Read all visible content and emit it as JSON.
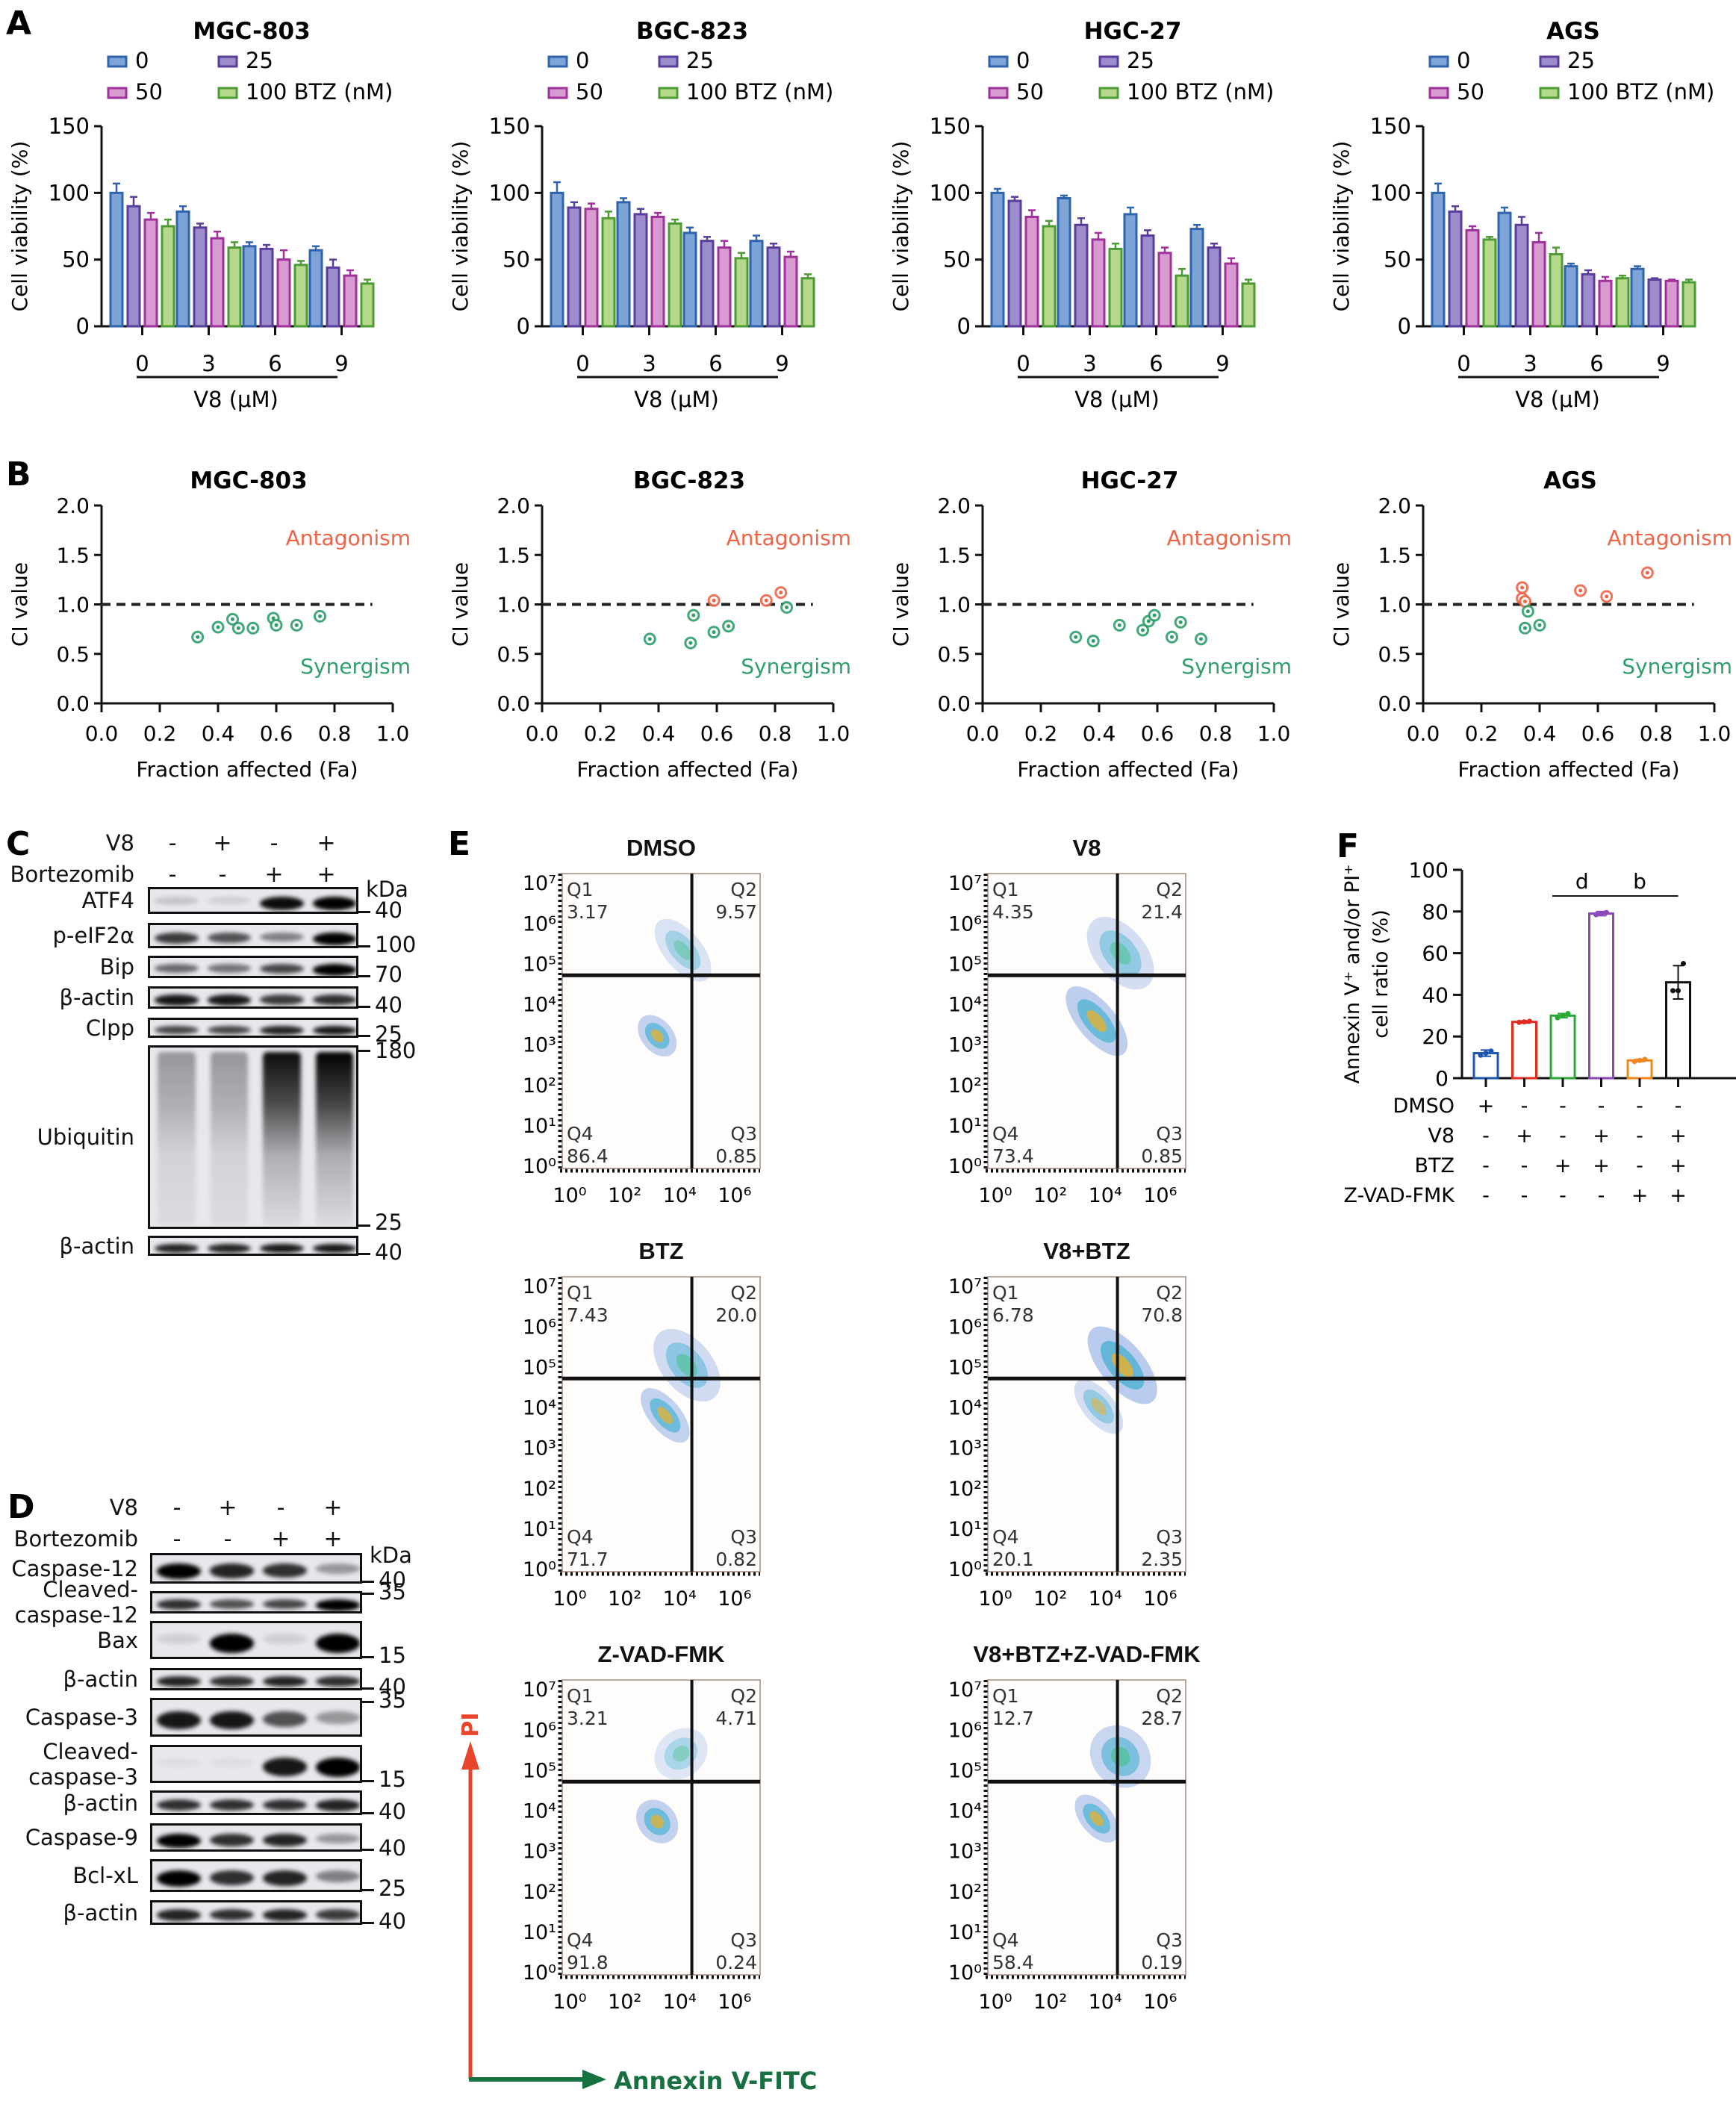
{
  "figure": {
    "panels": {
      "A": "A",
      "B": "B",
      "C": "C",
      "D": "D",
      "E": "E",
      "F": "F"
    }
  },
  "colors": {
    "btz0": "#2f63ad",
    "btz0_fill": "#7ea3d6",
    "btz25": "#5a3c9c",
    "btz25_fill": "#9d8ccb",
    "btz50": "#a0309a",
    "btz50_fill": "#d79bd1",
    "btz100": "#4e9a35",
    "btz100_fill": "#b5d98a",
    "antagonism": "#ee6448",
    "synergism": "#2e9e6b",
    "pi_arrow": "#e8452b",
    "annexin_arrow": "#16703f"
  },
  "chart_data": [
    {
      "id": "A-MGC-803",
      "type": "bar",
      "title": "MGC-803",
      "xlabel": "V8 (μM)",
      "ylabel": "Cell viability (%)",
      "categories": [
        "0",
        "3",
        "6",
        "9"
      ],
      "ylim": [
        0,
        150
      ],
      "yticks": [
        0,
        50,
        100,
        150
      ],
      "legend": [
        "0",
        "25",
        "50",
        "100 BTZ (nM)"
      ],
      "series": [
        {
          "name": "0",
          "values": [
            100,
            86,
            60,
            57
          ],
          "errors": [
            7,
            4,
            3,
            3
          ]
        },
        {
          "name": "25",
          "values": [
            90,
            74,
            58,
            44
          ],
          "errors": [
            7,
            3,
            3,
            6
          ]
        },
        {
          "name": "50",
          "values": [
            80,
            66,
            50,
            38
          ],
          "errors": [
            5,
            5,
            7,
            4
          ]
        },
        {
          "name": "100",
          "values": [
            75,
            59,
            46,
            32
          ],
          "errors": [
            5,
            4,
            3,
            3
          ]
        }
      ]
    },
    {
      "id": "A-BGC-823",
      "type": "bar",
      "title": "BGC-823",
      "xlabel": "V8 (μM)",
      "ylabel": "Cell viability (%)",
      "categories": [
        "0",
        "3",
        "6",
        "9"
      ],
      "ylim": [
        0,
        150
      ],
      "yticks": [
        0,
        50,
        100,
        150
      ],
      "legend": [
        "0",
        "25",
        "50",
        "100 BTZ (nM)"
      ],
      "series": [
        {
          "name": "0",
          "values": [
            100,
            93,
            70,
            64
          ],
          "errors": [
            8,
            3,
            4,
            4
          ]
        },
        {
          "name": "25",
          "values": [
            89,
            84,
            64,
            59
          ],
          "errors": [
            4,
            4,
            3,
            3
          ]
        },
        {
          "name": "50",
          "values": [
            88,
            82,
            59,
            52
          ],
          "errors": [
            4,
            3,
            5,
            4
          ]
        },
        {
          "name": "100",
          "values": [
            81,
            77,
            51,
            36
          ],
          "errors": [
            5,
            3,
            4,
            3
          ]
        }
      ]
    },
    {
      "id": "A-HGC-27",
      "type": "bar",
      "title": "HGC-27",
      "xlabel": "V8 (μM)",
      "ylabel": "Cell viability (%)",
      "categories": [
        "0",
        "3",
        "6",
        "9"
      ],
      "ylim": [
        0,
        150
      ],
      "yticks": [
        0,
        50,
        100,
        150
      ],
      "legend": [
        "0",
        "25",
        "50",
        "100 BTZ (nM)"
      ],
      "series": [
        {
          "name": "0",
          "values": [
            100,
            96,
            84,
            73
          ],
          "errors": [
            3,
            2,
            5,
            3
          ]
        },
        {
          "name": "25",
          "values": [
            94,
            76,
            68,
            59
          ],
          "errors": [
            3,
            5,
            4,
            3
          ]
        },
        {
          "name": "50",
          "values": [
            82,
            65,
            55,
            47
          ],
          "errors": [
            5,
            5,
            4,
            4
          ]
        },
        {
          "name": "100",
          "values": [
            75,
            58,
            38,
            32
          ],
          "errors": [
            4,
            4,
            5,
            3
          ]
        }
      ]
    },
    {
      "id": "A-AGS",
      "type": "bar",
      "title": "AGS",
      "xlabel": "V8 (μM)",
      "ylabel": "Cell viability (%)",
      "categories": [
        "0",
        "3",
        "6",
        "9"
      ],
      "ylim": [
        0,
        150
      ],
      "yticks": [
        0,
        50,
        100,
        150
      ],
      "legend": [
        "0",
        "25",
        "50",
        "100 BTZ (nM)"
      ],
      "series": [
        {
          "name": "0",
          "values": [
            100,
            85,
            45,
            43
          ],
          "errors": [
            7,
            4,
            2,
            2
          ]
        },
        {
          "name": "25",
          "values": [
            86,
            76,
            39,
            35
          ],
          "errors": [
            4,
            6,
            3,
            1
          ]
        },
        {
          "name": "50",
          "values": [
            72,
            63,
            34,
            34
          ],
          "errors": [
            3,
            7,
            3,
            1
          ]
        },
        {
          "name": "100",
          "values": [
            65,
            54,
            36,
            33
          ],
          "errors": [
            2,
            5,
            2,
            2
          ]
        }
      ]
    },
    {
      "id": "B-MGC-803",
      "type": "scatter",
      "title": "MGC-803",
      "xlabel": "Fraction affected (Fa)",
      "ylabel": "CI value",
      "xlim": [
        0,
        1
      ],
      "ylim": [
        0,
        2
      ],
      "xticks": [
        "0.0",
        "0.2",
        "0.4",
        "0.6",
        "0.8",
        "1.0"
      ],
      "yticks": [
        "0.0",
        "0.5",
        "1.0",
        "1.5",
        "2.0"
      ],
      "reference_line": 1.0,
      "annotations": [
        "Antagonism",
        "Synergism"
      ],
      "points": [
        {
          "x": 0.33,
          "y": 0.67,
          "class": "synergism"
        },
        {
          "x": 0.4,
          "y": 0.77,
          "class": "synergism"
        },
        {
          "x": 0.45,
          "y": 0.85,
          "class": "synergism"
        },
        {
          "x": 0.47,
          "y": 0.76,
          "class": "synergism"
        },
        {
          "x": 0.52,
          "y": 0.76,
          "class": "synergism"
        },
        {
          "x": 0.59,
          "y": 0.86,
          "class": "synergism"
        },
        {
          "x": 0.6,
          "y": 0.79,
          "class": "synergism"
        },
        {
          "x": 0.67,
          "y": 0.79,
          "class": "synergism"
        },
        {
          "x": 0.75,
          "y": 0.88,
          "class": "synergism"
        }
      ]
    },
    {
      "id": "B-BGC-823",
      "type": "scatter",
      "title": "BGC-823",
      "xlabel": "Fraction affected (Fa)",
      "ylabel": "CI value",
      "xlim": [
        0,
        1
      ],
      "ylim": [
        0,
        2
      ],
      "xticks": [
        "0.0",
        "0.2",
        "0.4",
        "0.6",
        "0.8",
        "1.0"
      ],
      "yticks": [
        "0.0",
        "0.5",
        "1.0",
        "1.5",
        "2.0"
      ],
      "reference_line": 1.0,
      "annotations": [
        "Antagonism",
        "Synergism"
      ],
      "points": [
        {
          "x": 0.37,
          "y": 0.65,
          "class": "synergism"
        },
        {
          "x": 0.51,
          "y": 0.61,
          "class": "synergism"
        },
        {
          "x": 0.52,
          "y": 0.89,
          "class": "synergism"
        },
        {
          "x": 0.59,
          "y": 0.72,
          "class": "synergism"
        },
        {
          "x": 0.64,
          "y": 0.78,
          "class": "synergism"
        },
        {
          "x": 0.59,
          "y": 1.04,
          "class": "antagonism"
        },
        {
          "x": 0.77,
          "y": 1.04,
          "class": "antagonism"
        },
        {
          "x": 0.82,
          "y": 1.12,
          "class": "antagonism"
        },
        {
          "x": 0.84,
          "y": 0.97,
          "class": "synergism"
        }
      ]
    },
    {
      "id": "B-HGC-27",
      "type": "scatter",
      "title": "HGC-27",
      "xlabel": "Fraction affected (Fa)",
      "ylabel": "CI value",
      "xlim": [
        0,
        1
      ],
      "ylim": [
        0,
        2
      ],
      "xticks": [
        "0.0",
        "0.2",
        "0.4",
        "0.6",
        "0.8",
        "1.0"
      ],
      "yticks": [
        "0.0",
        "0.5",
        "1.0",
        "1.5",
        "2.0"
      ],
      "reference_line": 1.0,
      "annotations": [
        "Antagonism",
        "Synergism"
      ],
      "points": [
        {
          "x": 0.32,
          "y": 0.67,
          "class": "synergism"
        },
        {
          "x": 0.38,
          "y": 0.63,
          "class": "synergism"
        },
        {
          "x": 0.47,
          "y": 0.79,
          "class": "synergism"
        },
        {
          "x": 0.55,
          "y": 0.74,
          "class": "synergism"
        },
        {
          "x": 0.57,
          "y": 0.83,
          "class": "synergism"
        },
        {
          "x": 0.59,
          "y": 0.89,
          "class": "synergism"
        },
        {
          "x": 0.65,
          "y": 0.67,
          "class": "synergism"
        },
        {
          "x": 0.68,
          "y": 0.82,
          "class": "synergism"
        },
        {
          "x": 0.75,
          "y": 0.65,
          "class": "synergism"
        }
      ]
    },
    {
      "id": "B-AGS",
      "type": "scatter",
      "title": "AGS",
      "xlabel": "Fraction affected (Fa)",
      "ylabel": "CI value",
      "xlim": [
        0,
        1
      ],
      "ylim": [
        0,
        2
      ],
      "xticks": [
        "0.0",
        "0.2",
        "0.4",
        "0.6",
        "0.8",
        "1.0"
      ],
      "yticks": [
        "0.0",
        "0.5",
        "1.0",
        "1.5",
        "2.0"
      ],
      "reference_line": 1.0,
      "annotations": [
        "Antagonism",
        "Synergism"
      ],
      "points": [
        {
          "x": 0.34,
          "y": 1.17,
          "class": "antagonism"
        },
        {
          "x": 0.34,
          "y": 1.06,
          "class": "antagonism"
        },
        {
          "x": 0.35,
          "y": 1.03,
          "class": "antagonism"
        },
        {
          "x": 0.36,
          "y": 0.93,
          "class": "synergism"
        },
        {
          "x": 0.35,
          "y": 0.76,
          "class": "synergism"
        },
        {
          "x": 0.4,
          "y": 0.79,
          "class": "synergism"
        },
        {
          "x": 0.54,
          "y": 1.14,
          "class": "antagonism"
        },
        {
          "x": 0.63,
          "y": 1.08,
          "class": "antagonism"
        },
        {
          "x": 0.77,
          "y": 1.32,
          "class": "antagonism"
        }
      ]
    },
    {
      "id": "F",
      "type": "bar",
      "ylabel_line1": "Annexin V⁺ and/or PI⁺",
      "ylabel_line2": "cell ratio (%)",
      "ylim": [
        0,
        100
      ],
      "yticks": [
        0,
        20,
        40,
        60,
        80,
        100
      ],
      "bars": [
        {
          "value": 12,
          "error": 1.5,
          "color": "#1f56b0",
          "points": [
            11,
            12,
            13
          ]
        },
        {
          "value": 27,
          "error": 0.5,
          "color": "#e02b1e",
          "points": [
            26.8,
            27,
            27.3
          ]
        },
        {
          "value": 30,
          "error": 1,
          "color": "#2aa836",
          "points": [
            29,
            30,
            31
          ]
        },
        {
          "value": 79,
          "error": 1,
          "color": "#8a47b8",
          "points": [
            78.5,
            79,
            79.5
          ]
        },
        {
          "value": 8.5,
          "error": 0.5,
          "color": "#f0861c",
          "points": [
            8,
            8.5,
            9
          ]
        },
        {
          "value": 46,
          "error": 8,
          "color": "#111111",
          "points": [
            42,
            42,
            55
          ]
        }
      ],
      "significance": [
        {
          "from": 2,
          "to": 3,
          "label": "d"
        },
        {
          "from": 3,
          "to": 5,
          "label": "b"
        }
      ],
      "conditions": [
        {
          "label": "DMSO",
          "signs": [
            "+",
            "-",
            "-",
            "-",
            "-",
            "-"
          ]
        },
        {
          "label": "V8",
          "signs": [
            "-",
            "+",
            "-",
            "+",
            "-",
            "+"
          ]
        },
        {
          "label": "BTZ",
          "signs": [
            "-",
            "-",
            "+",
            "+",
            "-",
            "+"
          ]
        },
        {
          "label": "Z-VAD-FMK",
          "signs": [
            "-",
            "-",
            "-",
            "-",
            "+",
            "+"
          ]
        }
      ]
    }
  ],
  "panel_C": {
    "header": [
      {
        "label": "V8",
        "signs": [
          "-",
          "+",
          "-",
          "+"
        ]
      },
      {
        "label": "Bortezomib",
        "signs": [
          "-",
          "-",
          "+",
          "+"
        ]
      }
    ],
    "kda_label": "kDa",
    "blots": [
      {
        "label": "ATF4",
        "mw": "40",
        "intensity": [
          0.15,
          0.1,
          0.95,
          1.0
        ]
      },
      {
        "label": "p-eIF2α",
        "mw": "100",
        "intensity": [
          0.75,
          0.65,
          0.45,
          1.0
        ]
      },
      {
        "label": "Bip",
        "mw": "70",
        "intensity": [
          0.55,
          0.5,
          0.7,
          1.0
        ]
      },
      {
        "label": "β-actin",
        "mw": "40",
        "intensity": [
          0.9,
          0.9,
          0.75,
          0.8
        ]
      },
      {
        "label": "Clpp",
        "mw": "25",
        "intensity": [
          0.7,
          0.7,
          0.85,
          0.9
        ]
      },
      {
        "label": "Ubiquitin",
        "mw_top": "180",
        "mw_bottom": "25",
        "intensity": [
          0.35,
          0.35,
          0.95,
          1.0
        ]
      },
      {
        "label": "β-actin",
        "mw": "40",
        "intensity": [
          0.85,
          0.85,
          0.9,
          0.9
        ]
      }
    ]
  },
  "panel_D": {
    "header": [
      {
        "label": "V8",
        "signs": [
          "-",
          "+",
          "-",
          "+"
        ]
      },
      {
        "label": "Bortezomib",
        "signs": [
          "-",
          "-",
          "+",
          "+"
        ]
      }
    ],
    "kda_label": "kDa",
    "blots": [
      {
        "label": "Caspase-12",
        "mw": "40",
        "intensity": [
          1.0,
          0.85,
          0.8,
          0.35
        ]
      },
      {
        "label": "Cleaved-\ncaspase-12",
        "mw": "35",
        "intensity": [
          0.8,
          0.65,
          0.7,
          1.0
        ]
      },
      {
        "label": "Bax",
        "mw": "15",
        "intensity": [
          0.1,
          1.0,
          0.1,
          1.0
        ]
      },
      {
        "label": "β-actin",
        "mw": "40",
        "intensity": [
          0.85,
          0.8,
          0.85,
          0.8
        ]
      },
      {
        "label": "Caspase-3",
        "mw": "35",
        "intensity": [
          0.9,
          0.9,
          0.65,
          0.35
        ]
      },
      {
        "label": "Cleaved-\ncaspase-3",
        "mw": "15",
        "intensity": [
          0.0,
          0.0,
          0.9,
          1.0
        ]
      },
      {
        "label": "β-actin",
        "mw": "40",
        "intensity": [
          0.8,
          0.8,
          0.8,
          0.85
        ]
      },
      {
        "label": "Caspase-9",
        "mw": "40",
        "intensity": [
          1.0,
          0.8,
          0.85,
          0.35
        ]
      },
      {
        "label": "Bcl-xL",
        "mw": "25",
        "intensity": [
          1.0,
          0.8,
          0.85,
          0.45
        ]
      },
      {
        "label": "β-actin",
        "mw": "40",
        "intensity": [
          0.85,
          0.8,
          0.85,
          0.75
        ]
      }
    ]
  },
  "panel_E": {
    "y_axis_label": "PI",
    "x_axis_label": "Annexin V-FITC",
    "x_ticks": [
      "10⁰",
      "10²",
      "10⁴",
      "10⁶"
    ],
    "y_ticks": [
      "10⁰",
      "10¹",
      "10²",
      "10³",
      "10⁴",
      "10⁵",
      "10⁶",
      "10⁷"
    ],
    "plots": [
      {
        "title": "DMSO",
        "Q1": "3.17",
        "Q2": "9.57",
        "Q3": "0.85",
        "Q4": "86.4"
      },
      {
        "title": "V8",
        "Q1": "4.35",
        "Q2": "21.4",
        "Q3": "0.85",
        "Q4": "73.4"
      },
      {
        "title": "BTZ",
        "Q1": "7.43",
        "Q2": "20.0",
        "Q3": "0.82",
        "Q4": "71.7"
      },
      {
        "title": "V8+BTZ",
        "Q1": "6.78",
        "Q2": "70.8",
        "Q3": "2.35",
        "Q4": "20.1"
      },
      {
        "title": "Z-VAD-FMK",
        "Q1": "3.21",
        "Q2": "4.71",
        "Q3": "0.24",
        "Q4": "91.8"
      },
      {
        "title": "V8+BTZ+Z-VAD-FMK",
        "Q1": "12.7",
        "Q2": "28.7",
        "Q3": "0.19",
        "Q4": "58.4"
      }
    ]
  }
}
